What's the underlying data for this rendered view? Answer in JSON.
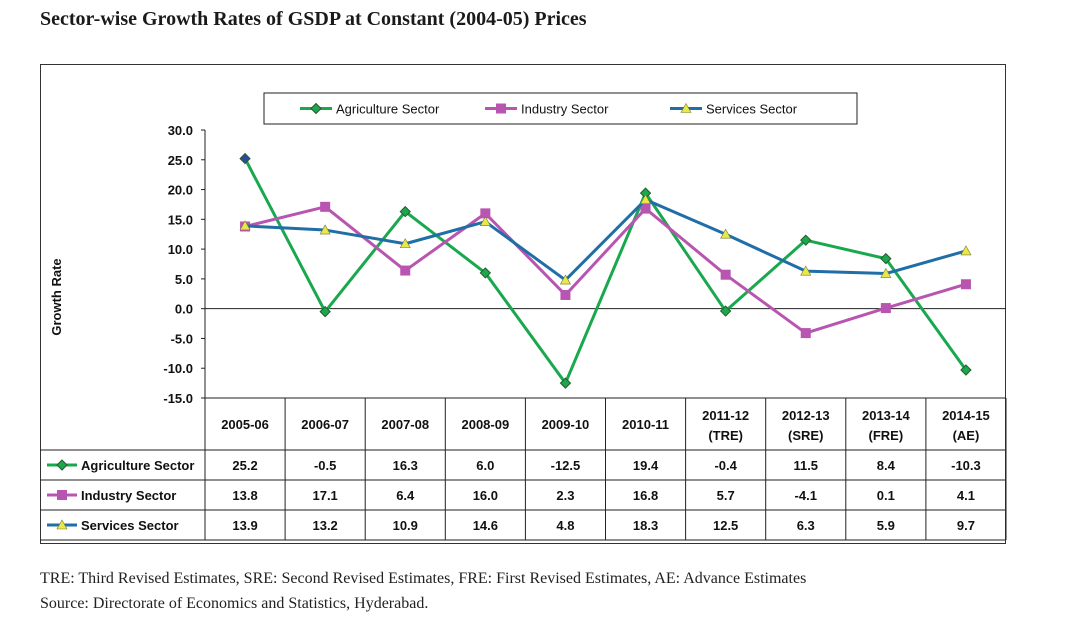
{
  "title": "Sector-wise Growth Rates of GSDP at Constant (2004-05) Prices",
  "footnotes": {
    "line1": "TRE: Third Revised Estimates, SRE: Second Revised Estimates, FRE: First Revised Estimates, AE: Advance Estimates",
    "line2": "Source: Directorate of Economics and Statistics, Hyderabad."
  },
  "colors": {
    "agriculture": "#1aa84e",
    "industry": "#b855b0",
    "services": "#1f6ea8",
    "triangle_marker": "#e8e84a",
    "diamond_agri_first": "#2e4a9e"
  },
  "chart_data": {
    "type": "line",
    "title": "",
    "xlabel": "",
    "ylabel": "Growth Rate",
    "ylim": [
      -15.0,
      30.0
    ],
    "yticks": [
      "30.0",
      "25.0",
      "20.0",
      "15.0",
      "10.0",
      "5.0",
      "0.0",
      "-5.0",
      "-10.0",
      "-15.0"
    ],
    "legend_position": "top-center",
    "grid": false,
    "categories": [
      [
        "2005-06"
      ],
      [
        "2006-07"
      ],
      [
        "2007-08"
      ],
      [
        "2008-09"
      ],
      [
        "2009-10"
      ],
      [
        "2010-11"
      ],
      [
        "2011-12",
        "(TRE)"
      ],
      [
        "2012-13",
        "(SRE)"
      ],
      [
        "2013-14",
        "(FRE)"
      ],
      [
        "2014-15",
        "(AE)"
      ]
    ],
    "series": [
      {
        "name": "Agriculture Sector",
        "marker": "diamond",
        "color_key": "agriculture",
        "values": [
          25.2,
          -0.5,
          16.3,
          6.0,
          -12.5,
          19.4,
          -0.4,
          11.5,
          8.4,
          -10.3
        ],
        "labels": [
          "25.2",
          "-0.5",
          "16.3",
          "6.0",
          "-12.5",
          "19.4",
          "-0.4",
          "11.5",
          "8.4",
          "-10.3"
        ]
      },
      {
        "name": "Industry Sector",
        "marker": "square",
        "color_key": "industry",
        "values": [
          13.8,
          17.1,
          6.4,
          16.0,
          2.3,
          16.8,
          5.7,
          -4.1,
          0.1,
          4.1
        ],
        "labels": [
          "13.8",
          "17.1",
          "6.4",
          "16.0",
          "2.3",
          "16.8",
          "5.7",
          "-4.1",
          "0.1",
          "4.1"
        ]
      },
      {
        "name": "Services Sector",
        "marker": "triangle",
        "color_key": "services",
        "values": [
          13.9,
          13.2,
          10.9,
          14.6,
          4.8,
          18.3,
          12.5,
          6.3,
          5.9,
          9.7
        ],
        "labels": [
          "13.9",
          "13.2",
          "10.9",
          "14.6",
          "4.8",
          "18.3",
          "12.5",
          "6.3",
          "5.9",
          "9.7"
        ]
      }
    ]
  }
}
